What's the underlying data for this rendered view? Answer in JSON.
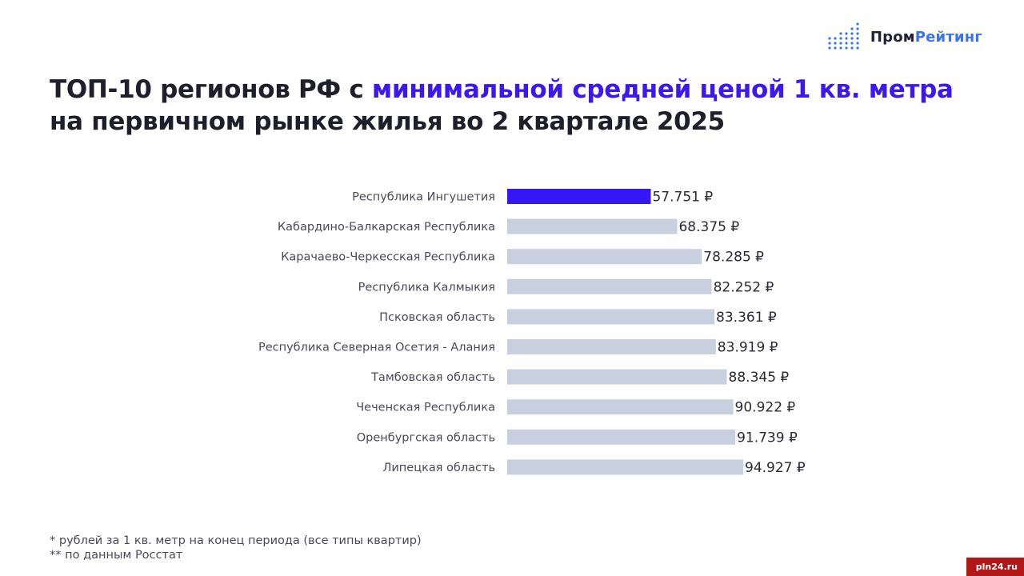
{
  "brand": {
    "part1": "Пром",
    "part2": "Рейтинг",
    "icon": "bar-dots-logo-icon",
    "color_dark": "#1f2333",
    "color_blue": "#3b73e8"
  },
  "title": {
    "prefix": "ТОП-10 регионов РФ с ",
    "highlight": "минимальной средней ценой 1 кв. метра",
    "line2": "на первичном рынке жилья во 2 квартале 2025",
    "highlight_color": "#3b17f0"
  },
  "chart_data": {
    "type": "bar",
    "orientation": "horizontal",
    "categories": [
      "Республика Ингушетия",
      "Кабардино-Балкарская Республика",
      "Карачаево-Черкесская Республика",
      "Республика Калмыкия",
      "Псковская область",
      "Республика Северная Осетия - Алания",
      "Тамбовская область",
      "Чеченская Республика",
      "Оренбургская область",
      "Липецкая область"
    ],
    "values": [
      57751,
      68375,
      78285,
      82252,
      83361,
      83919,
      88345,
      90922,
      91739,
      94927
    ],
    "data_labels": [
      "57.751 ₽",
      "68.375 ₽",
      "78.285 ₽",
      "82.252 ₽",
      "83.361 ₽",
      "83.919 ₽",
      "88.345 ₽",
      "90.922 ₽",
      "91.739 ₽",
      "94.927 ₽"
    ],
    "highlight_index": 0,
    "colors": {
      "highlight": "#3517f5",
      "default": "#c8d0e0"
    },
    "xlim": [
      0,
      94927
    ],
    "grid": false
  },
  "footnotes": [
    "* рублей за 1 кв. метр на конец периода (все типы квартир)",
    "** по данным Росстат"
  ],
  "watermark": "pln24.ru"
}
